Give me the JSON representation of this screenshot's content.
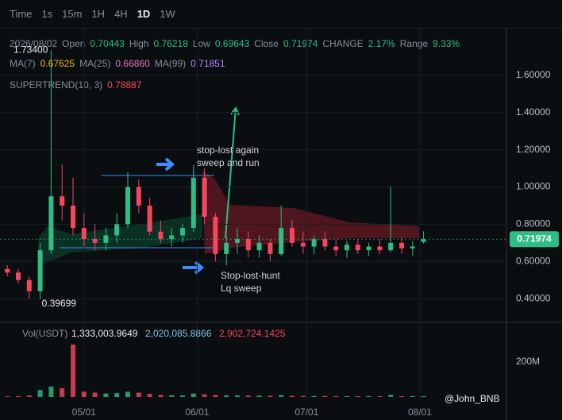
{
  "toolbar": {
    "items": [
      "Time",
      "1s",
      "15m",
      "1H",
      "4H",
      "1D",
      "1W"
    ],
    "active": 5
  },
  "legend": {
    "date": "2026/08/02",
    "fields": [
      [
        "Open",
        "0.70443"
      ],
      [
        "High",
        "0.76218"
      ],
      [
        "Low",
        "0.69643"
      ],
      [
        "Close",
        "0.71974"
      ],
      [
        "CHANGE",
        "2.17%"
      ],
      [
        "Range",
        "9.33%"
      ]
    ],
    "ma": [
      [
        "MA(7)",
        "0.67625",
        "#f0b90b"
      ],
      [
        "MA(25)",
        "0.66860",
        "#e377c2"
      ],
      [
        "MA(99)",
        "0.71851",
        "#b388ff"
      ]
    ],
    "supertrend": [
      "SUPERTREND(10, 3)",
      "0.78887"
    ]
  },
  "price_chart": {
    "xlim": [
      0,
      138.7
    ],
    "ylim": [
      0.277,
      1.851
    ],
    "yticks": [
      {
        "value": 0.4,
        "label": "0.40000"
      },
      {
        "value": 0.6,
        "label": "0.60000"
      },
      {
        "value": 0.8,
        "label": "0.80000"
      },
      {
        "value": 1.0,
        "label": "1.00000"
      },
      {
        "value": 1.2,
        "label": "1.20000"
      },
      {
        "value": 1.4,
        "label": "1.40000"
      },
      {
        "value": 1.6,
        "label": "1.60000"
      }
    ],
    "xticks": [
      {
        "value": 23,
        "label": "05/01"
      },
      {
        "value": 54,
        "label": "06/01"
      },
      {
        "value": 84,
        "label": "07/01"
      },
      {
        "value": 115,
        "label": "08/01"
      }
    ],
    "x": [
      2,
      5,
      8,
      11,
      14,
      17,
      20,
      23,
      26,
      29,
      32,
      35,
      38,
      41,
      44,
      47,
      50,
      53,
      56,
      59,
      62,
      65,
      68,
      71,
      74,
      77,
      80,
      83,
      86,
      89,
      92,
      95,
      98,
      101,
      104,
      107,
      110,
      113,
      116
    ],
    "open": [
      0.56,
      0.54,
      0.5,
      0.44,
      0.66,
      0.95,
      0.9,
      0.78,
      0.72,
      0.7,
      0.74,
      0.8,
      1.0,
      0.9,
      0.76,
      0.72,
      0.74,
      0.78,
      1.05,
      0.84,
      0.64,
      0.7,
      0.72,
      0.66,
      0.7,
      0.64,
      0.78,
      0.7,
      0.68,
      0.72,
      0.68,
      0.66,
      0.69,
      0.66,
      0.68,
      0.66,
      0.7,
      0.67,
      0.70443
    ],
    "high": [
      0.58,
      0.56,
      0.52,
      0.7,
      1.734,
      1.12,
      1.05,
      0.86,
      0.8,
      0.78,
      0.86,
      1.08,
      1.04,
      0.94,
      0.82,
      0.78,
      0.8,
      1.12,
      1.1,
      0.86,
      0.74,
      0.78,
      0.76,
      0.74,
      0.72,
      0.9,
      0.82,
      0.76,
      0.74,
      0.76,
      0.72,
      0.71,
      0.72,
      0.7,
      0.72,
      1.0,
      0.73,
      0.71,
      0.76218
    ],
    "low": [
      0.52,
      0.48,
      0.4,
      0.39699,
      0.64,
      0.82,
      0.74,
      0.68,
      0.66,
      0.66,
      0.7,
      0.78,
      0.86,
      0.74,
      0.7,
      0.68,
      0.7,
      0.76,
      0.8,
      0.6,
      0.58,
      0.64,
      0.62,
      0.62,
      0.6,
      0.63,
      0.68,
      0.64,
      0.64,
      0.66,
      0.63,
      0.62,
      0.64,
      0.63,
      0.64,
      0.65,
      0.64,
      0.63,
      0.69643
    ],
    "close": [
      0.54,
      0.5,
      0.44,
      0.66,
      0.95,
      0.9,
      0.78,
      0.72,
      0.7,
      0.74,
      0.8,
      1.0,
      0.9,
      0.76,
      0.72,
      0.74,
      0.78,
      1.05,
      0.84,
      0.64,
      0.7,
      0.72,
      0.66,
      0.7,
      0.64,
      0.78,
      0.7,
      0.68,
      0.72,
      0.68,
      0.66,
      0.69,
      0.66,
      0.68,
      0.66,
      0.7,
      0.67,
      0.68,
      0.71974
    ],
    "high_label": "1.73400",
    "low_label": "0.39699",
    "last_price_label": "0.71974",
    "annotations": [
      "stop-lost again",
      "sweep and run",
      "Stop-lost-hunt",
      "Lq sweep"
    ]
  },
  "volume_chart": {
    "title": "Vol(USDT)",
    "legend": [
      "1,333,003.9649",
      "2,020,085.8866",
      "2,902,724.1425"
    ],
    "ylim": [
      0,
      409000000
    ],
    "yticks": [
      {
        "value": 200000000,
        "label": "200M"
      }
    ],
    "values": [
      4000000,
      5000000,
      8000000,
      40000000,
      60000000,
      50000000,
      300000000,
      30000000,
      25000000,
      20000000,
      22000000,
      30000000,
      25000000,
      18000000,
      12000000,
      10000000,
      9000000,
      20000000,
      15000000,
      12000000,
      10000000,
      9000000,
      8000000,
      8000000,
      7000000,
      10000000,
      7000000,
      6000000,
      6000000,
      6000000,
      5000000,
      5000000,
      5000000,
      5000000,
      5000000,
      12000000,
      5000000,
      5000000,
      5000000
    ]
  },
  "watermark": "@John_BNB"
}
